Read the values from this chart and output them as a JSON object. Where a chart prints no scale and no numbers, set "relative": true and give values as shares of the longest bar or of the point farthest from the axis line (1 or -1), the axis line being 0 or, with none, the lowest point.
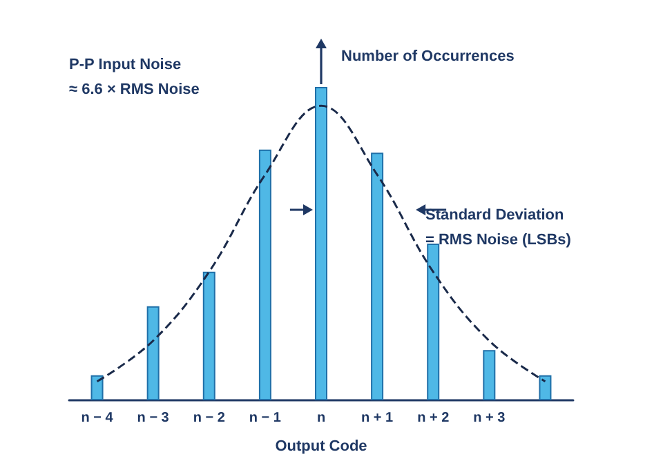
{
  "chart_data": {
    "type": "bar",
    "relative": true,
    "xlabel": "Output Code",
    "categories": [
      "n − 4",
      "n − 3",
      "n − 2",
      "n − 1",
      "n",
      "n + 1",
      "n + 2",
      "n + 3",
      null
    ],
    "series": [
      {
        "color": "#4fb8e6",
        "values": [
          0.08,
          0.3,
          0.41,
          0.8,
          1,
          0.79,
          0.5,
          0.16,
          0.08
        ]
      },
      {
        "type": "line",
        "color": "#1a2a4a",
        "line_style": "dashed",
        "marker": "none",
        "values": [
          0.06,
          0.19,
          0.41,
          0.72,
          0.94,
          0.72,
          0.41,
          0.19,
          0.06
        ]
      }
    ],
    "annotations": [
      "P-P Input Noise\n≈ 6.6 × RMS Noise",
      "Number of Occurrences",
      "Standard Deviation\n= RMS Noise (LSBs)"
    ]
  }
}
